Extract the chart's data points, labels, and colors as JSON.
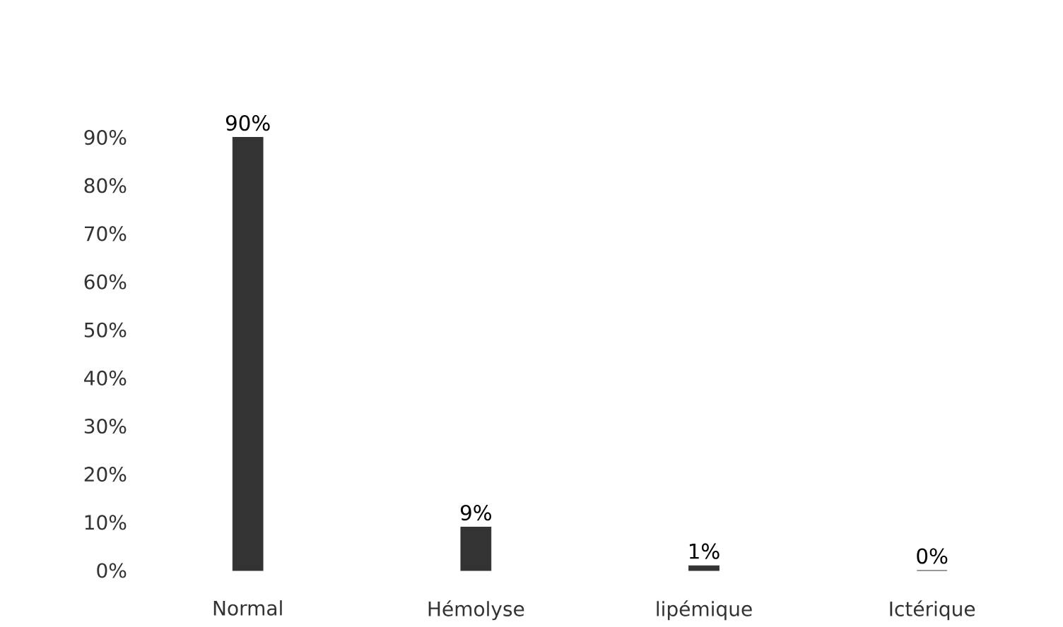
{
  "chart_data": {
    "type": "bar",
    "categories": [
      "Normal",
      "Hémolyse",
      "lipémique",
      "Ictérique"
    ],
    "values": [
      90,
      9,
      1,
      0
    ],
    "value_labels": [
      "90%",
      "9%",
      "1%",
      "0%"
    ],
    "color": "#333333",
    "ylim": [
      0,
      90
    ],
    "yticks": [
      {
        "value": 0,
        "label": "0%"
      },
      {
        "value": 10,
        "label": "10%"
      },
      {
        "value": 20,
        "label": "20%"
      },
      {
        "value": 30,
        "label": "30%"
      },
      {
        "value": 40,
        "label": "40%"
      },
      {
        "value": 50,
        "label": "50%"
      },
      {
        "value": 60,
        "label": "60%"
      },
      {
        "value": 70,
        "label": "70%"
      },
      {
        "value": 80,
        "label": "80%"
      },
      {
        "value": 90,
        "label": "90%"
      }
    ],
    "data_labels": false
  }
}
